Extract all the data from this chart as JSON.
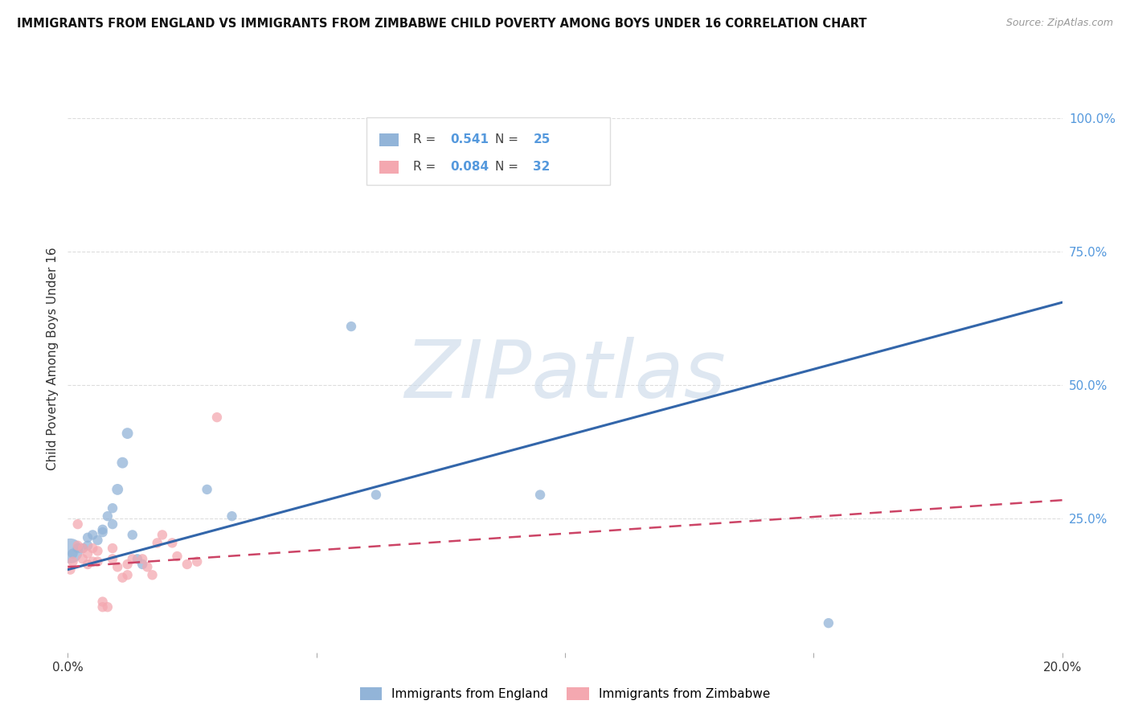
{
  "title": "IMMIGRANTS FROM ENGLAND VS IMMIGRANTS FROM ZIMBABWE CHILD POVERTY AMONG BOYS UNDER 16 CORRELATION CHART",
  "source": "Source: ZipAtlas.com",
  "ylabel": "Child Poverty Among Boys Under 16",
  "england_label": "Immigrants from England",
  "zimbabwe_label": "Immigrants from Zimbabwe",
  "england_R": "0.541",
  "england_N": "25",
  "zimbabwe_R": "0.084",
  "zimbabwe_N": "32",
  "england_color": "#92B4D8",
  "zimbabwe_color": "#F4A8B0",
  "england_line_color": "#3366AA",
  "zimbabwe_line_color": "#CC4466",
  "background_color": "#FFFFFF",
  "watermark": "ZIPatlas",
  "xlim": [
    0.0,
    0.2
  ],
  "ylim": [
    0.0,
    1.1
  ],
  "yticks_right": [
    0.25,
    0.5,
    0.75,
    1.0
  ],
  "yticklabels_right": [
    "25.0%",
    "50.0%",
    "75.0%",
    "100.0%"
  ],
  "england_x": [
    0.0005,
    0.001,
    0.002,
    0.003,
    0.004,
    0.004,
    0.005,
    0.006,
    0.007,
    0.007,
    0.008,
    0.009,
    0.009,
    0.01,
    0.011,
    0.012,
    0.013,
    0.014,
    0.015,
    0.028,
    0.033,
    0.057,
    0.062,
    0.095,
    0.153
  ],
  "england_y": [
    0.19,
    0.185,
    0.195,
    0.195,
    0.2,
    0.215,
    0.22,
    0.21,
    0.225,
    0.23,
    0.255,
    0.24,
    0.27,
    0.305,
    0.355,
    0.41,
    0.22,
    0.175,
    0.165,
    0.305,
    0.255,
    0.61,
    0.295,
    0.295,
    0.055
  ],
  "england_sizes": [
    500,
    80,
    80,
    80,
    80,
    80,
    80,
    80,
    80,
    80,
    80,
    80,
    80,
    100,
    100,
    100,
    80,
    80,
    80,
    80,
    80,
    80,
    80,
    80,
    80
  ],
  "zimbabwe_x": [
    0.0005,
    0.001,
    0.002,
    0.002,
    0.003,
    0.003,
    0.004,
    0.004,
    0.005,
    0.005,
    0.006,
    0.006,
    0.007,
    0.007,
    0.008,
    0.009,
    0.009,
    0.01,
    0.011,
    0.012,
    0.012,
    0.013,
    0.015,
    0.016,
    0.017,
    0.018,
    0.019,
    0.021,
    0.022,
    0.024,
    0.026,
    0.03
  ],
  "zimbabwe_y": [
    0.155,
    0.17,
    0.2,
    0.24,
    0.175,
    0.195,
    0.165,
    0.185,
    0.17,
    0.195,
    0.19,
    0.17,
    0.085,
    0.095,
    0.085,
    0.195,
    0.175,
    0.16,
    0.14,
    0.145,
    0.165,
    0.175,
    0.175,
    0.16,
    0.145,
    0.205,
    0.22,
    0.205,
    0.18,
    0.165,
    0.17,
    0.44
  ],
  "zimbabwe_sizes": [
    80,
    80,
    80,
    80,
    80,
    80,
    80,
    80,
    80,
    80,
    80,
    80,
    80,
    80,
    80,
    80,
    80,
    80,
    80,
    80,
    80,
    80,
    80,
    80,
    80,
    80,
    80,
    80,
    80,
    80,
    80,
    80
  ],
  "england_trendline_x": [
    0.0,
    0.2
  ],
  "england_trendline_y": [
    0.155,
    0.655
  ],
  "zimbabwe_trendline_x": [
    0.0,
    0.2
  ],
  "zimbabwe_trendline_y": [
    0.16,
    0.285
  ],
  "label_color": "#333333",
  "tick_color_right": "#5599DD",
  "tick_color_x": "#333333",
  "grid_color": "#DDDDDD",
  "legend_box_color": "#DDDDDD"
}
